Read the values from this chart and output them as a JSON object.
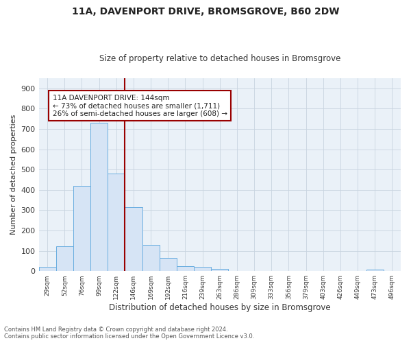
{
  "title1": "11A, DAVENPORT DRIVE, BROMSGROVE, B60 2DW",
  "title2": "Size of property relative to detached houses in Bromsgrove",
  "xlabel": "Distribution of detached houses by size in Bromsgrove",
  "ylabel": "Number of detached properties",
  "bar_color": "#d6e4f5",
  "bar_edge_color": "#6aaee0",
  "grid_color": "#c8d4e0",
  "categories": [
    "29sqm",
    "52sqm",
    "76sqm",
    "99sqm",
    "122sqm",
    "146sqm",
    "169sqm",
    "192sqm",
    "216sqm",
    "239sqm",
    "263sqm",
    "286sqm",
    "309sqm",
    "333sqm",
    "356sqm",
    "379sqm",
    "403sqm",
    "426sqm",
    "449sqm",
    "473sqm",
    "496sqm"
  ],
  "values": [
    20,
    122,
    418,
    730,
    480,
    315,
    130,
    65,
    25,
    20,
    10,
    0,
    0,
    0,
    0,
    0,
    0,
    0,
    0,
    8,
    0
  ],
  "vline_color": "#990000",
  "annotation_text": "11A DAVENPORT DRIVE: 144sqm\n← 73% of detached houses are smaller (1,711)\n26% of semi-detached houses are larger (608) →",
  "annotation_box_color": "white",
  "annotation_box_edge": "#990000",
  "footnote1": "Contains HM Land Registry data © Crown copyright and database right 2024.",
  "footnote2": "Contains public sector information licensed under the Open Government Licence v3.0.",
  "ylim": [
    0,
    950
  ],
  "yticks": [
    0,
    100,
    200,
    300,
    400,
    500,
    600,
    700,
    800,
    900
  ],
  "bg_color": "#eaf1f8"
}
